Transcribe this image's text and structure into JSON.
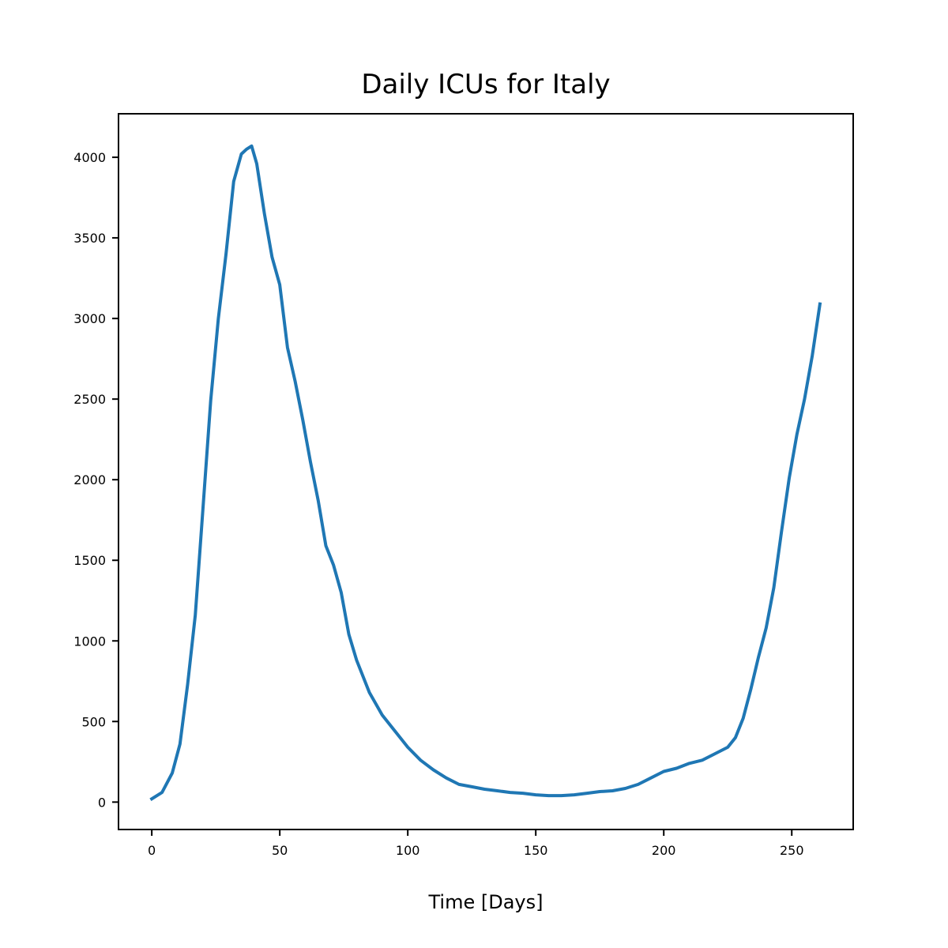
{
  "chart_data": {
    "type": "line",
    "title": "Daily ICUs for Italy",
    "xlabel": "Time [Days]",
    "ylabel": "",
    "xlim": [
      -13,
      274
    ],
    "ylim": [
      -170,
      4270
    ],
    "xticks": [
      0,
      50,
      100,
      150,
      200,
      250
    ],
    "yticks": [
      0,
      500,
      1000,
      1500,
      2000,
      2500,
      3000,
      3500,
      4000
    ],
    "grid": false,
    "legend": "none",
    "series": [
      {
        "color": "#1f77b4",
        "x": [
          0,
          4,
          8,
          11,
          14,
          17,
          20,
          23,
          26,
          29,
          32,
          35,
          37,
          39,
          41,
          44,
          47,
          50,
          53,
          56,
          59,
          62,
          65,
          68,
          71,
          74,
          77,
          80,
          85,
          90,
          95,
          100,
          105,
          110,
          115,
          120,
          125,
          130,
          135,
          140,
          145,
          150,
          155,
          160,
          165,
          170,
          175,
          180,
          185,
          190,
          195,
          200,
          205,
          210,
          215,
          220,
          225,
          228,
          231,
          234,
          237,
          240,
          243,
          246,
          249,
          252,
          255,
          258,
          261
        ],
        "values": [
          20,
          60,
          180,
          360,
          730,
          1160,
          1820,
          2490,
          3000,
          3400,
          3850,
          4020,
          4050,
          4070,
          3960,
          3650,
          3380,
          3210,
          2820,
          2610,
          2370,
          2110,
          1870,
          1590,
          1470,
          1300,
          1040,
          880,
          680,
          540,
          440,
          340,
          260,
          200,
          150,
          110,
          95,
          80,
          70,
          60,
          55,
          45,
          40,
          40,
          45,
          55,
          65,
          70,
          85,
          110,
          150,
          190,
          210,
          240,
          260,
          300,
          340,
          400,
          520,
          700,
          900,
          1080,
          1330,
          1680,
          2010,
          2280,
          2500,
          2770,
          3090
        ]
      }
    ]
  }
}
